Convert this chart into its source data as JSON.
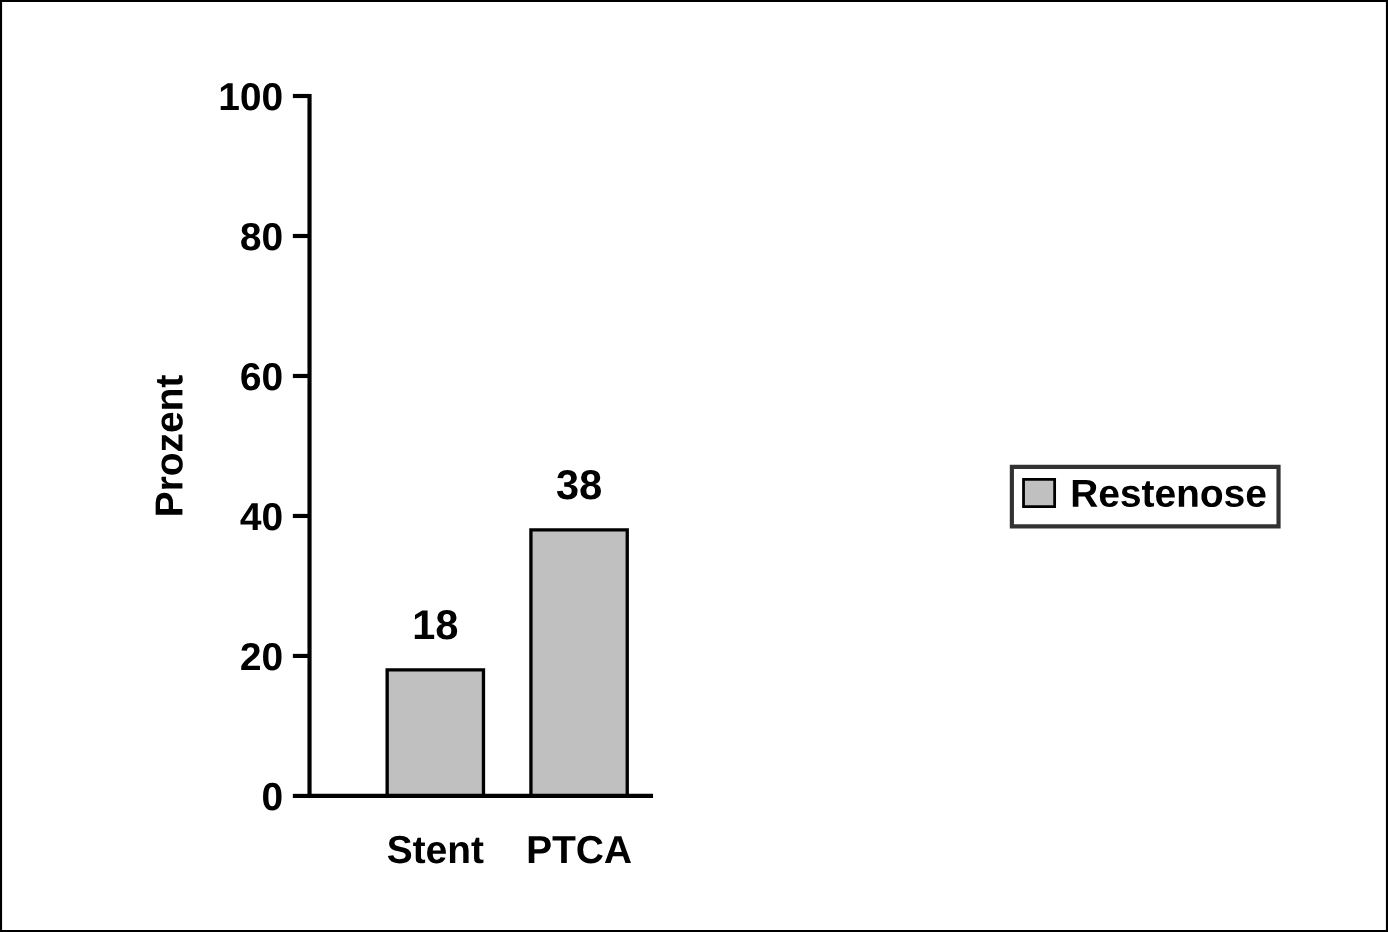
{
  "chart_data": {
    "type": "bar",
    "ylabel": "Prozent",
    "categories": [
      "Stent",
      "PTCA"
    ],
    "series": [
      {
        "name": "Restenose",
        "color": "#c0c0c0",
        "values": [
          18,
          38
        ]
      }
    ],
    "ylim": [
      0,
      100
    ],
    "yticks": [
      0,
      20,
      40,
      60,
      80,
      100
    ],
    "data_labels": true,
    "legend": "right",
    "grid": false
  }
}
